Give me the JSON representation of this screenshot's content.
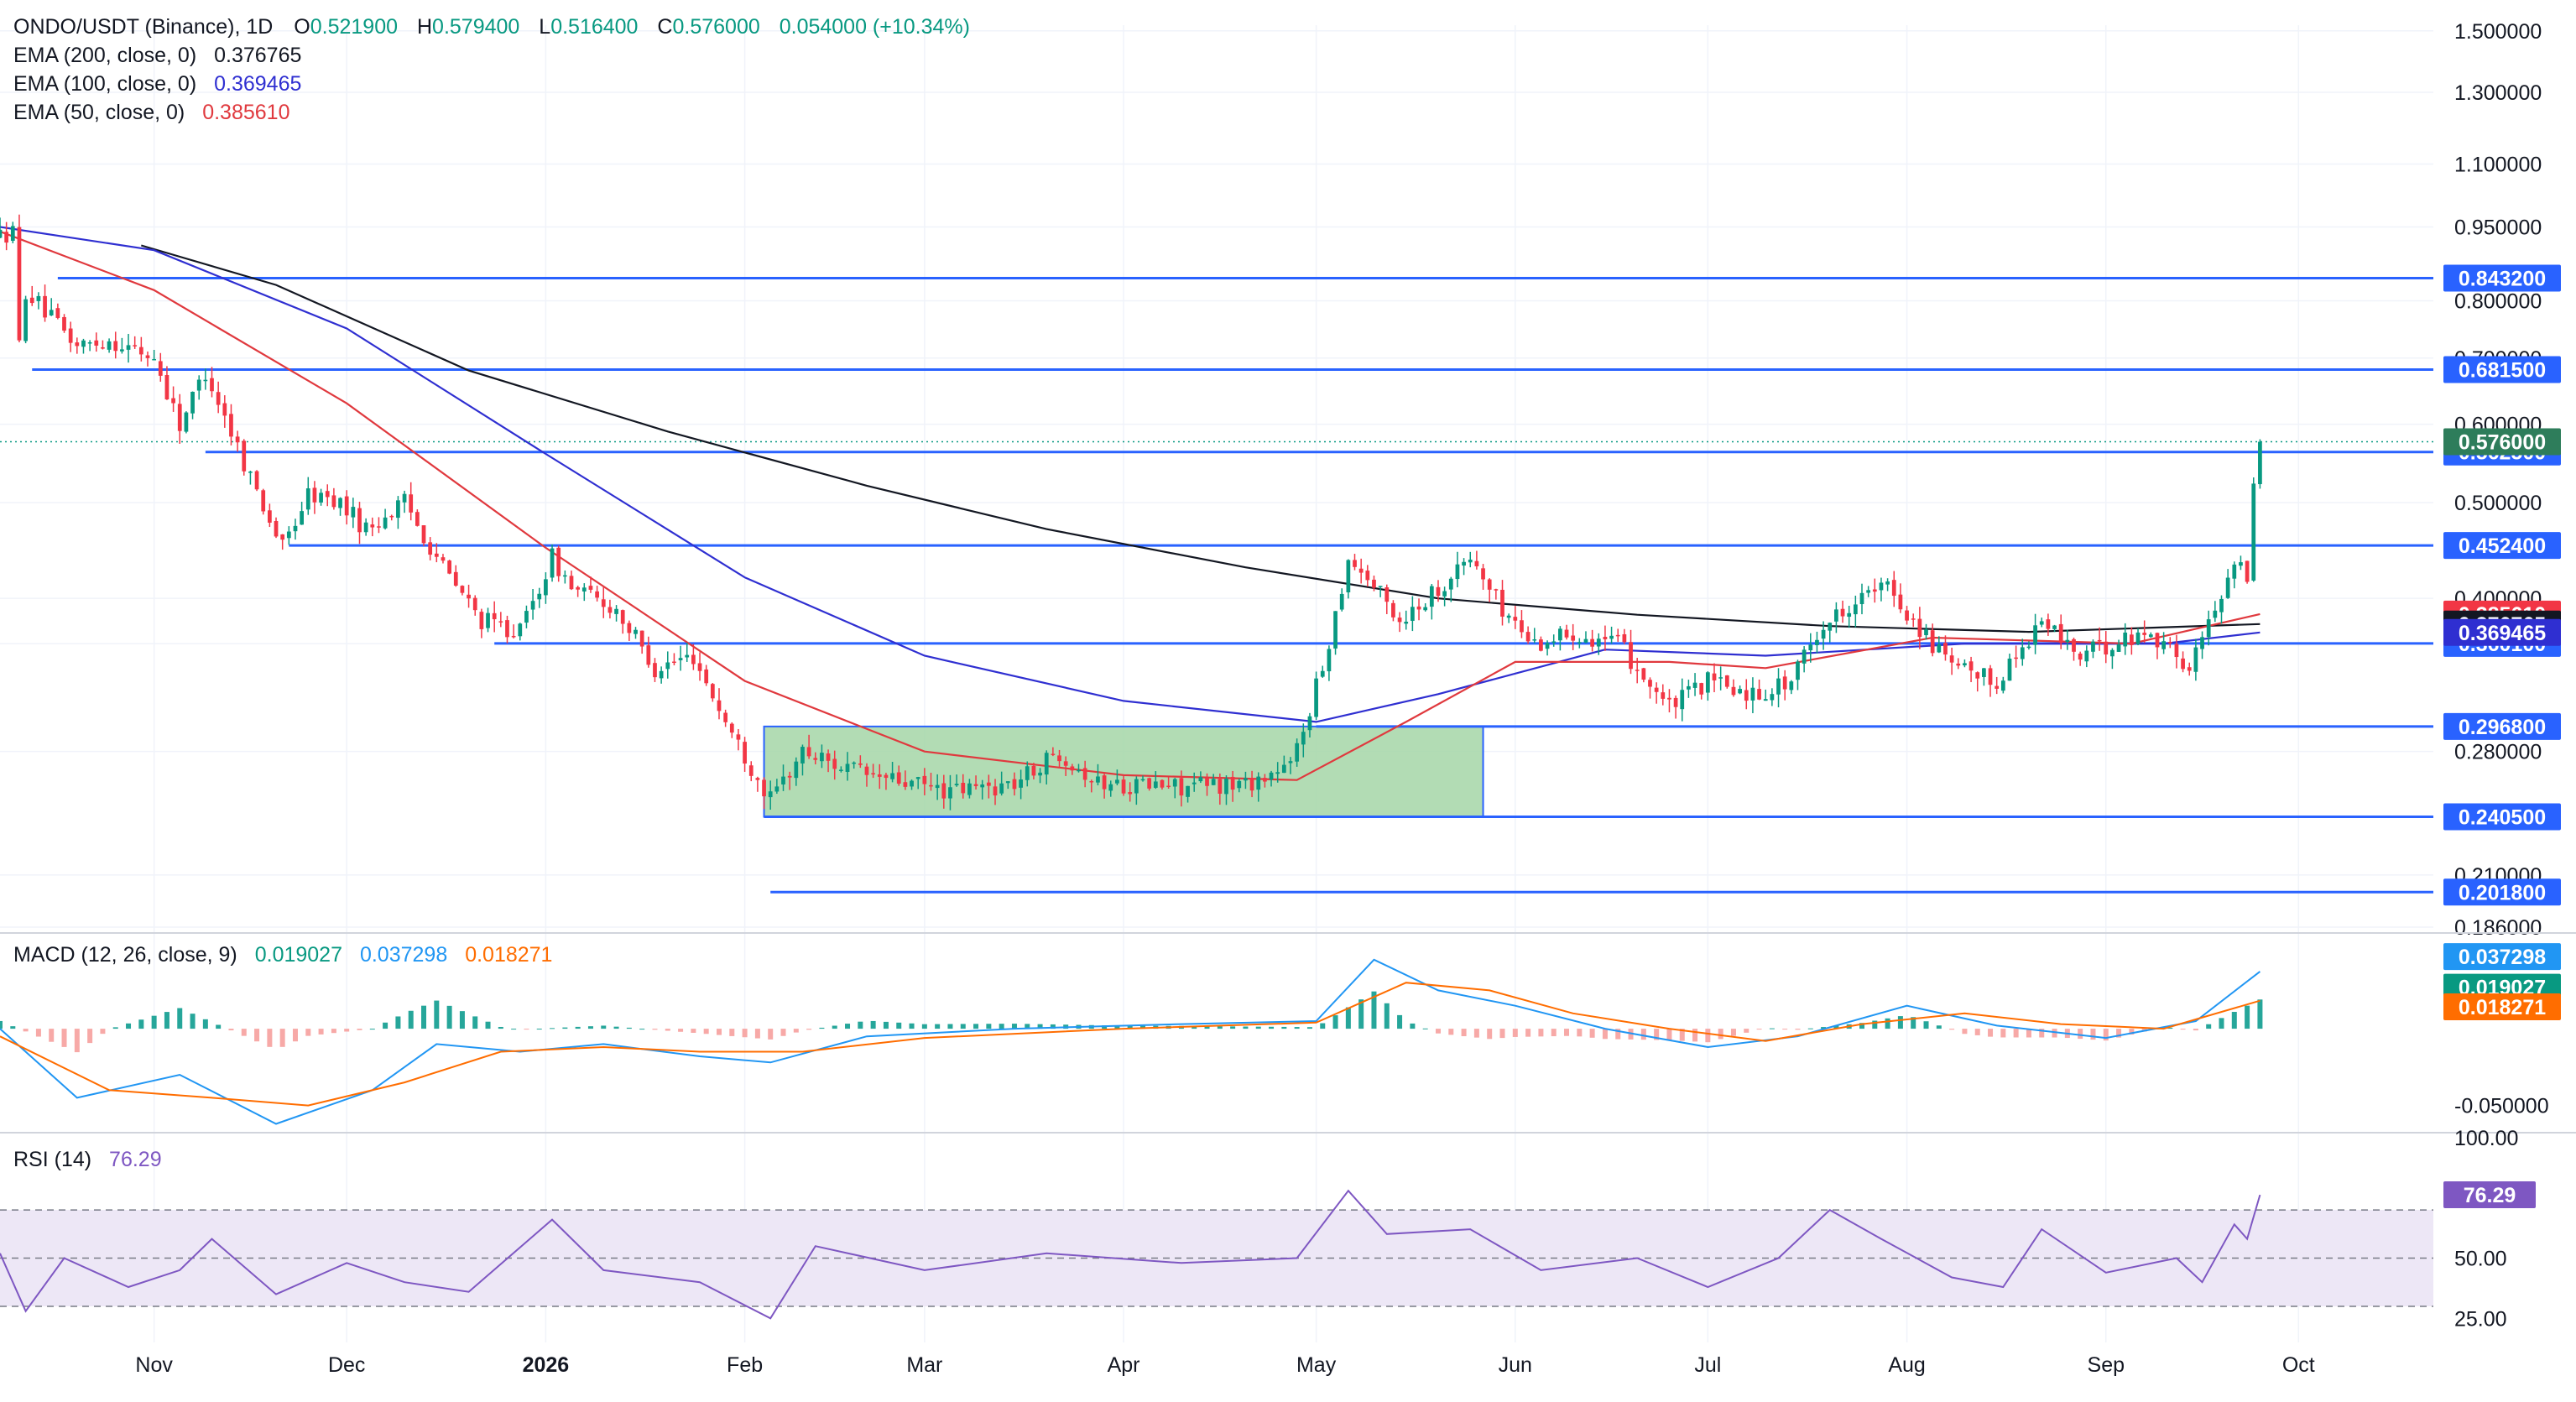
{
  "header": {
    "symbol": "ONDO/USDT (Binance), 1D",
    "ohlc": {
      "o_label": "O",
      "o": "0.521900",
      "h_label": "H",
      "h": "0.579400",
      "l_label": "L",
      "l": "0.516400",
      "c_label": "C",
      "c": "0.576000",
      "change": "0.054000 (+10.34%)"
    }
  },
  "colors": {
    "up": "#089981",
    "down": "#f23645",
    "ema200": "#131722",
    "ema100": "#2f2fd1",
    "ema50": "#e0393e",
    "level": "#2962ff",
    "box_fill": "#a5d6a7",
    "box_stroke": "#2962ff",
    "macd": "#2196f3",
    "signal": "#ff6d00",
    "rsi": "#7e57c2",
    "rsi_band": "#ede7f6",
    "last_price": "#2e7d5b"
  },
  "chart_data": [
    {
      "type": "candlestick",
      "panel": "price",
      "scale": "log",
      "ylim": [
        0.186,
        1.52
      ],
      "y_ticks": [
        "1.500000",
        "1.300000",
        "1.100000",
        "0.950000",
        "0.800000",
        "0.700000",
        "0.600000",
        "0.500000",
        "0.400000",
        "0.360000",
        "0.280000",
        "0.210000",
        "0.186000"
      ],
      "x_ticks": [
        {
          "label": "Nov",
          "date": "2025-11-01"
        },
        {
          "label": "Dec",
          "date": "2025-12-01"
        },
        {
          "label": "2026",
          "date": "2026-01-01",
          "bold": true
        },
        {
          "label": "Feb",
          "date": "2026-02-01"
        },
        {
          "label": "Mar",
          "date": "2026-03-01"
        },
        {
          "label": "Apr",
          "date": "2026-04-01"
        },
        {
          "label": "May",
          "date": "2026-05-01"
        },
        {
          "label": "Jun",
          "date": "2026-06-01"
        },
        {
          "label": "Jul",
          "date": "2026-07-01"
        },
        {
          "label": "Aug",
          "date": "2026-08-01"
        },
        {
          "label": "Sep",
          "date": "2026-09-01"
        },
        {
          "label": "Oct",
          "date": "2026-10-01"
        }
      ],
      "x_range": [
        "2025-10-08",
        "2026-10-22"
      ],
      "price_path": [
        [
          "2025-10-08",
          0.93
        ],
        [
          "2025-10-10",
          0.94
        ],
        [
          "2025-10-11",
          0.72
        ],
        [
          "2025-10-12",
          0.82
        ],
        [
          "2025-10-15",
          0.78
        ],
        [
          "2025-10-20",
          0.72
        ],
        [
          "2025-10-25",
          0.73
        ],
        [
          "2025-11-01",
          0.7
        ],
        [
          "2025-11-05",
          0.6
        ],
        [
          "2025-11-09",
          0.68
        ],
        [
          "2025-11-15",
          0.55
        ],
        [
          "2025-11-21",
          0.45
        ],
        [
          "2025-11-25",
          0.51
        ],
        [
          "2025-11-30",
          0.5
        ],
        [
          "2025-12-04",
          0.47
        ],
        [
          "2025-12-10",
          0.5
        ],
        [
          "2025-12-17",
          0.42
        ],
        [
          "2025-12-22",
          0.38
        ],
        [
          "2025-12-28",
          0.37
        ],
        [
          "2026-01-02",
          0.44
        ],
        [
          "2026-01-05",
          0.41
        ],
        [
          "2026-01-12",
          0.39
        ],
        [
          "2026-01-18",
          0.34
        ],
        [
          "2026-01-24",
          0.35
        ],
        [
          "2026-01-29",
          0.3
        ],
        [
          "2026-02-02",
          0.27
        ],
        [
          "2026-02-05",
          0.25
        ],
        [
          "2026-02-10",
          0.28
        ],
        [
          "2026-02-20",
          0.265
        ],
        [
          "2026-03-05",
          0.255
        ],
        [
          "2026-03-15",
          0.26
        ],
        [
          "2026-03-22",
          0.28
        ],
        [
          "2026-03-28",
          0.26
        ],
        [
          "2026-04-10",
          0.258
        ],
        [
          "2026-04-20",
          0.26
        ],
        [
          "2026-04-27",
          0.27
        ],
        [
          "2026-05-02",
          0.34
        ],
        [
          "2026-05-06",
          0.44
        ],
        [
          "2026-05-09",
          0.42
        ],
        [
          "2026-05-14",
          0.38
        ],
        [
          "2026-05-20",
          0.41
        ],
        [
          "2026-05-25",
          0.44
        ],
        [
          "2026-05-30",
          0.39
        ],
        [
          "2026-06-04",
          0.36
        ],
        [
          "2026-06-10",
          0.37
        ],
        [
          "2026-06-17",
          0.36
        ],
        [
          "2026-06-25",
          0.31
        ],
        [
          "2026-07-01",
          0.33
        ],
        [
          "2026-07-08",
          0.32
        ],
        [
          "2026-07-14",
          0.33
        ],
        [
          "2026-07-18",
          0.37
        ],
        [
          "2026-07-24",
          0.4
        ],
        [
          "2026-07-29",
          0.41
        ],
        [
          "2026-08-02",
          0.38
        ],
        [
          "2026-08-08",
          0.34
        ],
        [
          "2026-08-15",
          0.33
        ],
        [
          "2026-08-22",
          0.38
        ],
        [
          "2026-08-28",
          0.35
        ],
        [
          "2026-09-02",
          0.36
        ],
        [
          "2026-09-08",
          0.37
        ],
        [
          "2026-09-14",
          0.34
        ],
        [
          "2026-09-18",
          0.39
        ],
        [
          "2026-09-21",
          0.44
        ],
        [
          "2026-09-23",
          0.42
        ],
        [
          "2026-09-24",
          0.5219
        ],
        [
          "2026-09-25",
          0.576
        ]
      ],
      "last_candle": {
        "date": "2026-09-25",
        "open": 0.5219,
        "high": 0.5794,
        "low": 0.5164,
        "close": 0.576
      },
      "emas": [
        {
          "name": "EMA (200, close, 0)",
          "value": "0.376765",
          "color": "#131722",
          "path": [
            [
              "2025-10-30",
              0.91
            ],
            [
              "2025-11-20",
              0.83
            ],
            [
              "2025-12-20",
              0.68
            ],
            [
              "2026-01-20",
              0.59
            ],
            [
              "2026-02-20",
              0.52
            ],
            [
              "2026-03-20",
              0.47
            ],
            [
              "2026-04-20",
              0.43
            ],
            [
              "2026-05-20",
              0.4
            ],
            [
              "2026-06-20",
              0.385
            ],
            [
              "2026-07-20",
              0.375
            ],
            [
              "2026-08-20",
              0.37
            ],
            [
              "2026-09-25",
              0.376765
            ]
          ]
        },
        {
          "name": "EMA (100, close, 0)",
          "value": "0.369465",
          "color": "#2f2fd1",
          "path": [
            [
              "2025-10-08",
              0.95
            ],
            [
              "2025-11-01",
              0.9
            ],
            [
              "2025-12-01",
              0.75
            ],
            [
              "2026-01-01",
              0.56
            ],
            [
              "2026-02-01",
              0.42
            ],
            [
              "2026-03-01",
              0.35
            ],
            [
              "2026-04-01",
              0.315
            ],
            [
              "2026-05-01",
              0.3
            ],
            [
              "2026-05-20",
              0.32
            ],
            [
              "2026-06-15",
              0.355
            ],
            [
              "2026-07-10",
              0.35
            ],
            [
              "2026-08-10",
              0.36
            ],
            [
              "2026-09-10",
              0.36
            ],
            [
              "2026-09-25",
              0.369465
            ]
          ]
        },
        {
          "name": "EMA (50, close, 0)",
          "value": "0.385610",
          "color": "#e0393e",
          "path": [
            [
              "2025-10-08",
              0.94
            ],
            [
              "2025-11-01",
              0.82
            ],
            [
              "2025-12-01",
              0.63
            ],
            [
              "2026-01-01",
              0.45
            ],
            [
              "2026-02-01",
              0.33
            ],
            [
              "2026-03-01",
              0.28
            ],
            [
              "2026-04-01",
              0.265
            ],
            [
              "2026-04-28",
              0.262
            ],
            [
              "2026-05-15",
              0.3
            ],
            [
              "2026-06-01",
              0.345
            ],
            [
              "2026-06-25",
              0.345
            ],
            [
              "2026-07-10",
              0.34
            ],
            [
              "2026-08-05",
              0.365
            ],
            [
              "2026-09-05",
              0.36
            ],
            [
              "2026-09-25",
              0.38561
            ]
          ]
        }
      ],
      "levels": [
        {
          "value": "0.843200",
          "from": "2025-10-17"
        },
        {
          "value": "0.681500",
          "from": "2025-10-13"
        },
        {
          "value": "0.562500",
          "from": "2025-11-09"
        },
        {
          "value": "0.452400",
          "from": "2025-11-22"
        },
        {
          "value": "0.360100",
          "from": "2025-12-24"
        },
        {
          "value": "0.296800",
          "from": "2026-05-01"
        },
        {
          "value": "0.240500",
          "from": "2026-02-04"
        },
        {
          "value": "0.201800",
          "from": "2026-02-05"
        }
      ],
      "range_box": {
        "from": "2026-02-04",
        "to": "2026-05-27",
        "top": 0.2968,
        "bottom": 0.2405
      },
      "price_tags": [
        {
          "value": "0.576000",
          "bg": "#2e7d5b"
        },
        {
          "value": "0.385610",
          "bg": "#f23645"
        },
        {
          "value": "0.376765",
          "bg": "#131722"
        },
        {
          "value": "0.369465",
          "bg": "#2f2fd1"
        }
      ]
    },
    {
      "type": "line",
      "panel": "macd",
      "title": "MACD (12, 26, close, 9)",
      "values": {
        "histogram": "0.019027",
        "macd": "0.037298",
        "signal": "0.018271"
      },
      "y_ticks": [
        "0.050000",
        "-0.050000"
      ],
      "ylim": [
        -0.065,
        0.058
      ],
      "series": [
        {
          "name": "MACD",
          "color": "#2196f3",
          "x": [
            "2025-10-08",
            "2025-10-20",
            "2025-11-05",
            "2025-11-20",
            "2025-12-05",
            "2025-12-15",
            "2025-12-28",
            "2026-01-10",
            "2026-01-25",
            "2026-02-05",
            "2026-02-20",
            "2026-03-15",
            "2026-04-10",
            "2026-05-01",
            "2026-05-10",
            "2026-05-20",
            "2026-06-01",
            "2026-06-15",
            "2026-07-01",
            "2026-07-15",
            "2026-08-01",
            "2026-08-15",
            "2026-09-01",
            "2026-09-15",
            "2026-09-25"
          ],
          "y": [
            0.0,
            -0.045,
            -0.03,
            -0.062,
            -0.04,
            -0.01,
            -0.015,
            -0.01,
            -0.018,
            -0.022,
            -0.005,
            0.0,
            0.003,
            0.005,
            0.045,
            0.025,
            0.015,
            0.0,
            -0.012,
            -0.005,
            0.015,
            0.002,
            -0.006,
            0.005,
            0.037298
          ]
        },
        {
          "name": "Signal",
          "color": "#ff6d00",
          "x": [
            "2025-10-08",
            "2025-10-25",
            "2025-11-10",
            "2025-11-25",
            "2025-12-10",
            "2025-12-25",
            "2026-01-10",
            "2026-01-25",
            "2026-02-10",
            "2026-03-01",
            "2026-04-01",
            "2026-05-01",
            "2026-05-15",
            "2026-05-28",
            "2026-06-10",
            "2026-06-25",
            "2026-07-10",
            "2026-07-25",
            "2026-08-10",
            "2026-08-25",
            "2026-09-10",
            "2026-09-25"
          ],
          "y": [
            -0.005,
            -0.04,
            -0.045,
            -0.05,
            -0.035,
            -0.015,
            -0.012,
            -0.015,
            -0.015,
            -0.006,
            0.0,
            0.004,
            0.03,
            0.025,
            0.01,
            0.0,
            -0.008,
            0.003,
            0.01,
            0.003,
            0.0,
            0.018271
          ]
        }
      ]
    },
    {
      "type": "line",
      "panel": "rsi",
      "title": "RSI (14)",
      "value": "76.29",
      "y_ticks": [
        "100.00",
        "50.00",
        "25.00"
      ],
      "ylim": [
        15,
        100
      ],
      "bands": [
        30,
        70
      ],
      "series": [
        {
          "name": "RSI",
          "color": "#7e57c2",
          "x": [
            "2025-10-08",
            "2025-10-12",
            "2025-10-18",
            "2025-10-28",
            "2025-11-05",
            "2025-11-10",
            "2025-11-20",
            "2025-12-01",
            "2025-12-10",
            "2025-12-20",
            "2026-01-02",
            "2026-01-10",
            "2026-01-25",
            "2026-02-05",
            "2026-02-12",
            "2026-03-01",
            "2026-03-20",
            "2026-04-10",
            "2026-04-28",
            "2026-05-06",
            "2026-05-12",
            "2026-05-25",
            "2026-06-05",
            "2026-06-20",
            "2026-07-01",
            "2026-07-12",
            "2026-07-20",
            "2026-07-28",
            "2026-08-08",
            "2026-08-16",
            "2026-08-22",
            "2026-09-01",
            "2026-09-12",
            "2026-09-16",
            "2026-09-21",
            "2026-09-23",
            "2026-09-25"
          ],
          "y": [
            52,
            28,
            50,
            38,
            45,
            58,
            35,
            48,
            40,
            36,
            66,
            45,
            40,
            25,
            55,
            45,
            52,
            48,
            50,
            78,
            60,
            62,
            45,
            50,
            38,
            50,
            70,
            58,
            42,
            38,
            62,
            44,
            50,
            40,
            64,
            58,
            76.29
          ]
        }
      ]
    }
  ]
}
